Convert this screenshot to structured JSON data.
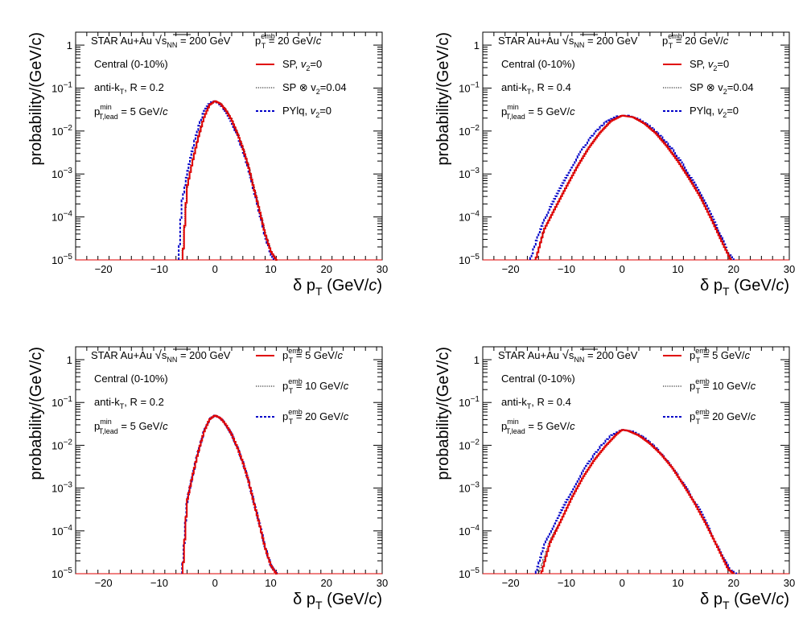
{
  "chart_data": [
    {
      "type": "line",
      "panel": "top-left",
      "xlabel": "δ p_T (GeV/c)",
      "ylabel": "probability/(GeV/c)",
      "xlim": [
        -25,
        30
      ],
      "ylim": [
        1e-05,
        2
      ],
      "yscale": "log",
      "x_ticks": [
        -20,
        -10,
        0,
        10,
        20,
        30
      ],
      "y_ticks": [
        "1",
        "10^-1",
        "10^-2",
        "10^-3",
        "10^-4",
        "10^-5"
      ],
      "annotations": [
        "STAR Au+Au √s_NN = 200 GeV",
        "Central (0-10%)",
        "anti-k_T, R = 0.2",
        "p_T,lead^min = 5 GeV/c",
        "p_T^emb = 20 GeV/c"
      ],
      "legend": [
        "SP, v_2=0",
        "SP ⊗ v_2=0.04",
        "PYlq, v_2=0"
      ],
      "series": [
        {
          "name": "SP, v_2=0",
          "color": "#e00000",
          "style": "solid",
          "x": [
            -5.8,
            -5,
            -4,
            -3,
            -2,
            -1,
            0,
            1,
            2,
            3,
            4,
            5,
            6,
            7,
            8,
            9,
            10,
            10.6,
            11
          ],
          "y": [
            1e-05,
            0.0005,
            0.002,
            0.007,
            0.02,
            0.04,
            0.05,
            0.043,
            0.03,
            0.018,
            0.009,
            0.004,
            0.0015,
            0.00045,
            0.00014,
            4e-05,
            1.6e-05,
            1.2e-05,
            1e-05
          ]
        },
        {
          "name": "SP ⊗ v_2=0.04",
          "color": "#000000",
          "style": "dotted",
          "x": [
            -5.9,
            -5,
            -4,
            -3,
            -2,
            -1,
            0,
            1,
            2,
            3,
            4,
            5,
            6,
            7,
            8,
            9,
            10,
            10.6,
            11
          ],
          "y": [
            1e-05,
            0.00055,
            0.0022,
            0.0075,
            0.021,
            0.041,
            0.05,
            0.044,
            0.031,
            0.019,
            0.0095,
            0.0042,
            0.0016,
            0.0005,
            0.00015,
            4.4e-05,
            1.7e-05,
            1.2e-05,
            1e-05
          ]
        },
        {
          "name": "PYlq, v_2=0",
          "color": "#0000c8",
          "style": "dashed",
          "x": [
            -6.5,
            -6,
            -5,
            -4,
            -3,
            -2,
            -1,
            0,
            1,
            2,
            3,
            4,
            5,
            6,
            7,
            8,
            9,
            10,
            10.5
          ],
          "y": [
            1e-05,
            0.0002,
            0.001,
            0.004,
            0.012,
            0.028,
            0.045,
            0.05,
            0.04,
            0.028,
            0.016,
            0.008,
            0.0035,
            0.0013,
            0.0004,
            0.00012,
            3.5e-05,
            1.4e-05,
            1e-05
          ]
        }
      ]
    },
    {
      "type": "line",
      "panel": "top-right",
      "xlabel": "δ p_T (GeV/c)",
      "ylabel": "probability/(GeV/c)",
      "xlim": [
        -25,
        30
      ],
      "ylim": [
        1e-05,
        2
      ],
      "yscale": "log",
      "x_ticks": [
        -20,
        -10,
        0,
        10,
        20,
        30
      ],
      "y_ticks": [
        "1",
        "10^-1",
        "10^-2",
        "10^-3",
        "10^-4",
        "10^-5"
      ],
      "annotations": [
        "STAR Au+Au √s_NN = 200 GeV",
        "Central (0-10%)",
        "anti-k_T, R = 0.4",
        "p_T,lead^min = 5 GeV/c",
        "p_T^emb = 20 GeV/c"
      ],
      "legend": [
        "SP, v_2=0",
        "SP ⊗ v_2=0.04",
        "PYlq, v_2=0"
      ],
      "series": [
        {
          "name": "SP, v_2=0",
          "color": "#e00000",
          "style": "solid",
          "x": [
            -15.5,
            -14,
            -12,
            -10,
            -8,
            -6,
            -4,
            -2,
            0,
            2,
            4,
            6,
            8,
            10,
            12,
            14,
            16,
            18,
            19.5
          ],
          "y": [
            1e-05,
            5e-05,
            0.00016,
            0.0005,
            0.0015,
            0.004,
            0.009,
            0.017,
            0.023,
            0.021,
            0.015,
            0.009,
            0.0045,
            0.002,
            0.0008,
            0.0003,
            9e-05,
            2.5e-05,
            1e-05
          ]
        },
        {
          "name": "SP ⊗ v_2=0.04",
          "color": "#000000",
          "style": "dotted",
          "x": [
            -15.6,
            -14,
            -12,
            -10,
            -8,
            -6,
            -4,
            -2,
            0,
            2,
            4,
            6,
            8,
            10,
            12,
            14,
            16,
            18,
            19.6
          ],
          "y": [
            1e-05,
            5.2e-05,
            0.00017,
            0.00052,
            0.0016,
            0.0041,
            0.0092,
            0.0172,
            0.023,
            0.021,
            0.015,
            0.0092,
            0.0046,
            0.0021,
            0.00082,
            0.00031,
            9.3e-05,
            2.6e-05,
            1e-05
          ]
        },
        {
          "name": "PYlq, v_2=0",
          "color": "#0000c8",
          "style": "dashed",
          "x": [
            -16.5,
            -15,
            -13,
            -11,
            -9,
            -7,
            -5,
            -3,
            -1,
            1,
            3,
            5,
            7,
            9,
            11,
            13,
            15,
            17,
            19,
            20
          ],
          "y": [
            1e-05,
            4e-05,
            0.00016,
            0.0005,
            0.0015,
            0.004,
            0.009,
            0.016,
            0.022,
            0.023,
            0.019,
            0.013,
            0.0075,
            0.0038,
            0.0016,
            0.0006,
            0.0002,
            6e-05,
            1.5e-05,
            1e-05
          ]
        }
      ]
    },
    {
      "type": "line",
      "panel": "bottom-left",
      "xlabel": "δ p_T (GeV/c)",
      "ylabel": "probability/(GeV/c)",
      "xlim": [
        -25,
        30
      ],
      "ylim": [
        1e-05,
        2
      ],
      "yscale": "log",
      "x_ticks": [
        -20,
        -10,
        0,
        10,
        20,
        30
      ],
      "y_ticks": [
        "1",
        "10^-1",
        "10^-2",
        "10^-3",
        "10^-4",
        "10^-5"
      ],
      "annotations": [
        "STAR Au+Au √s_NN = 200 GeV",
        "Central (0-10%)",
        "anti-k_T, R = 0.2",
        "p_T,lead^min = 5 GeV/c"
      ],
      "legend": [
        "p_T^emb = 5 GeV/c",
        "p_T^emb = 10 GeV/c",
        "p_T^emb = 20 GeV/c"
      ],
      "series": [
        {
          "name": "p_T^emb = 5 GeV/c",
          "color": "#e00000",
          "style": "solid",
          "x": [
            -5.8,
            -5,
            -4,
            -3,
            -2,
            -1,
            0,
            1,
            2,
            3,
            4,
            5,
            6,
            7,
            8,
            9,
            10,
            10.6,
            11
          ],
          "y": [
            1e-05,
            0.0005,
            0.002,
            0.007,
            0.02,
            0.04,
            0.05,
            0.043,
            0.03,
            0.018,
            0.009,
            0.004,
            0.0015,
            0.00045,
            0.00014,
            4e-05,
            1.6e-05,
            1.2e-05,
            1e-05
          ]
        },
        {
          "name": "p_T^emb = 10 GeV/c",
          "color": "#000000",
          "style": "dotted",
          "x": [
            -5.8,
            -5,
            -4,
            -3,
            -2,
            -1,
            0,
            1,
            2,
            3,
            4,
            5,
            6,
            7,
            8,
            9,
            10,
            10.6,
            11
          ],
          "y": [
            1e-05,
            0.0005,
            0.002,
            0.007,
            0.02,
            0.04,
            0.05,
            0.043,
            0.03,
            0.018,
            0.009,
            0.004,
            0.0015,
            0.00045,
            0.00014,
            4e-05,
            1.6e-05,
            1.2e-05,
            1e-05
          ]
        },
        {
          "name": "p_T^emb = 20 GeV/c",
          "color": "#0000c8",
          "style": "dashed",
          "x": [
            -5.9,
            -5,
            -4,
            -3,
            -2,
            -1,
            0,
            1,
            2,
            3,
            4,
            5,
            6,
            7,
            8,
            9,
            10,
            10.6,
            11.1
          ],
          "y": [
            1e-05,
            0.00052,
            0.0021,
            0.0072,
            0.0205,
            0.041,
            0.05,
            0.043,
            0.03,
            0.018,
            0.009,
            0.004,
            0.0015,
            0.00046,
            0.000145,
            4.2e-05,
            1.6e-05,
            1.2e-05,
            1e-05
          ]
        }
      ]
    },
    {
      "type": "line",
      "panel": "bottom-right",
      "xlabel": "δ p_T (GeV/c)",
      "ylabel": "probability/(GeV/c)",
      "xlim": [
        -25,
        30
      ],
      "ylim": [
        1e-05,
        2
      ],
      "yscale": "log",
      "x_ticks": [
        -20,
        -10,
        0,
        10,
        20,
        30
      ],
      "y_ticks": [
        "1",
        "10^-1",
        "10^-2",
        "10^-3",
        "10^-4",
        "10^-5"
      ],
      "annotations": [
        "STAR Au+Au √s_NN = 200 GeV",
        "Central (0-10%)",
        "anti-k_T, R = 0.4",
        "p_T,lead^min = 5 GeV/c"
      ],
      "legend": [
        "p_T^emb = 5 GeV/c",
        "p_T^emb = 10 GeV/c",
        "p_T^emb = 20 GeV/c"
      ],
      "series": [
        {
          "name": "p_T^emb = 5 GeV/c",
          "color": "#e00000",
          "style": "solid",
          "x": [
            -14.5,
            -13,
            -11,
            -9,
            -7,
            -5,
            -3,
            -1,
            0,
            1,
            3,
            5,
            7,
            9,
            11,
            13,
            15,
            17,
            19,
            20
          ],
          "y": [
            1e-05,
            5e-05,
            0.00017,
            0.0006,
            0.0018,
            0.0045,
            0.0095,
            0.018,
            0.023,
            0.022,
            0.017,
            0.011,
            0.0062,
            0.003,
            0.0012,
            0.00045,
            0.00015,
            4.5e-05,
            1.3e-05,
            1e-05
          ]
        },
        {
          "name": "p_T^emb = 10 GeV/c",
          "color": "#000000",
          "style": "dotted",
          "x": [
            -15,
            -13,
            -11,
            -9,
            -7,
            -5,
            -3,
            -1,
            0,
            1,
            3,
            5,
            7,
            9,
            11,
            13,
            15,
            17,
            19,
            20
          ],
          "y": [
            1e-05,
            5.5e-05,
            0.00018,
            0.00062,
            0.0018,
            0.0046,
            0.0096,
            0.018,
            0.023,
            0.022,
            0.017,
            0.011,
            0.0062,
            0.003,
            0.0012,
            0.00046,
            0.00015,
            4.6e-05,
            1.3e-05,
            1e-05
          ]
        },
        {
          "name": "p_T^emb = 20 GeV/c",
          "color": "#0000c8",
          "style": "dashed",
          "x": [
            -15.5,
            -14,
            -12,
            -10,
            -8,
            -6,
            -4,
            -2,
            0,
            2,
            4,
            6,
            8,
            10,
            12,
            14,
            16,
            18,
            19.5,
            20.5
          ],
          "y": [
            1e-05,
            4.5e-05,
            0.00016,
            0.0005,
            0.0015,
            0.004,
            0.009,
            0.017,
            0.023,
            0.021,
            0.015,
            0.009,
            0.0045,
            0.002,
            0.0008,
            0.0003,
            9e-05,
            2.5e-05,
            1.2e-05,
            1e-05
          ]
        }
      ]
    }
  ]
}
